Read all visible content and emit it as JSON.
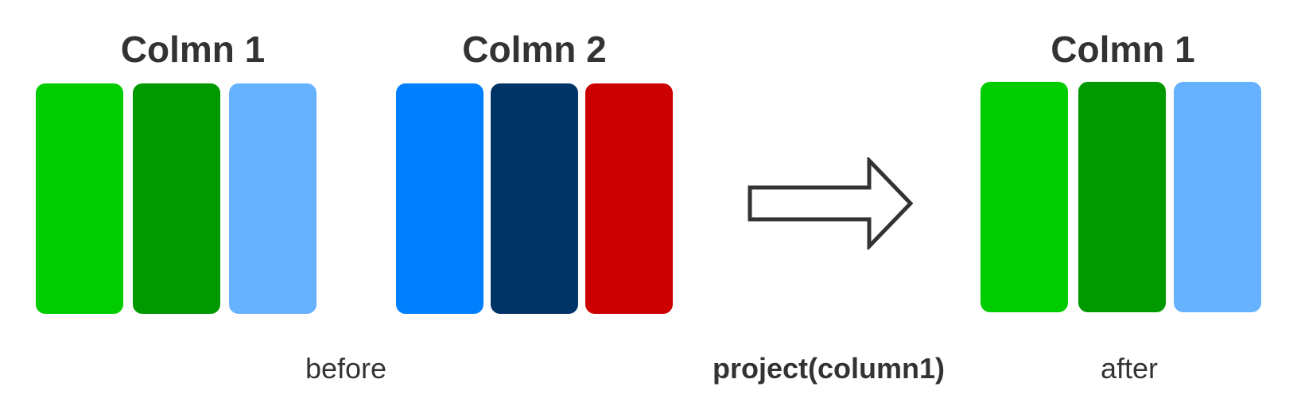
{
  "groups": {
    "before_col1": {
      "title": "Colmn 1",
      "bars": [
        {
          "color": "#00CC00"
        },
        {
          "color": "#009900"
        },
        {
          "color": "#66B2FF"
        }
      ]
    },
    "before_col2": {
      "title": "Colmn 2",
      "bars": [
        {
          "color": "#007FFF"
        },
        {
          "color": "#003366"
        },
        {
          "color": "#CC0000"
        }
      ]
    },
    "after_col1": {
      "title": "Colmn 1",
      "bars": [
        {
          "color": "#00CC00"
        },
        {
          "color": "#009900"
        },
        {
          "color": "#66B2FF"
        }
      ]
    }
  },
  "captions": {
    "before": "before",
    "operation": "project(column1)",
    "after": "after"
  },
  "arrow": {
    "icon": "right-arrow-icon",
    "stroke_color": "#333333",
    "fill_color": "#ffffff"
  }
}
